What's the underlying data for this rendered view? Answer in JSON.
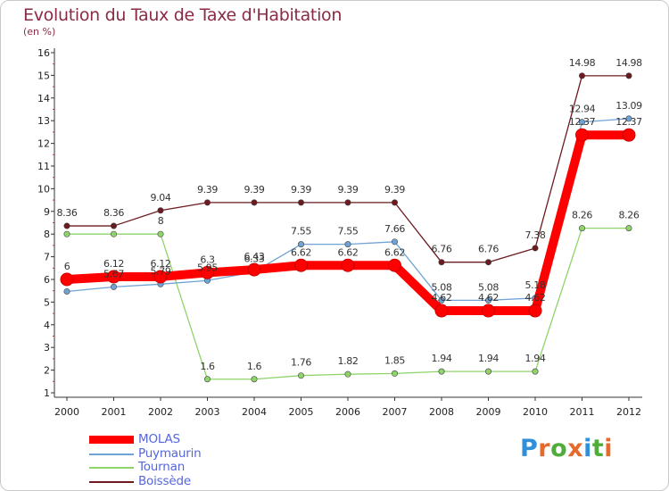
{
  "title": "Evolution du Taux de Taxe d'Habitation",
  "unit": "(en %)",
  "brand": "Proxiti",
  "chart_data": {
    "type": "line",
    "x": [
      "2000",
      "2001",
      "2002",
      "2003",
      "2004",
      "2005",
      "2006",
      "2007",
      "2008",
      "2009",
      "2010",
      "2011",
      "2012"
    ],
    "ylim": [
      1,
      16
    ],
    "yticks": [
      1,
      2,
      3,
      4,
      5,
      6,
      7,
      8,
      9,
      10,
      11,
      12,
      13,
      14,
      15,
      16
    ],
    "grid": false,
    "legend": "bottom-left",
    "series": [
      {
        "name": "Boissède",
        "color": "#6b1a1f",
        "values": [
          8.36,
          8.36,
          9.04,
          9.39,
          9.39,
          9.39,
          9.39,
          9.39,
          6.76,
          6.76,
          7.38,
          14.98,
          14.98
        ],
        "labels": [
          "8.36",
          "8.36",
          "9.04",
          "9.39",
          "9.39",
          "9.39",
          "9.39",
          "9.39",
          "6.76",
          "6.76",
          "7.38",
          "14.98",
          "14.98"
        ]
      },
      {
        "name": "Tournan",
        "color": "#8fd46a",
        "values": [
          8,
          8,
          8,
          1.6,
          1.6,
          1.76,
          1.82,
          1.85,
          1.94,
          1.94,
          1.94,
          8.26,
          8.26
        ],
        "labels": [
          "",
          "",
          "8",
          "1.6",
          "1.6",
          "1.76",
          "1.82",
          "1.85",
          "1.94",
          "1.94",
          "1.94",
          "8.26",
          "8.26"
        ]
      },
      {
        "name": "Puymaurin",
        "color": "#6fa3d6",
        "values": [
          5.47,
          5.67,
          5.79,
          5.95,
          6.33,
          7.55,
          7.55,
          7.66,
          5.08,
          5.08,
          5.18,
          12.94,
          13.09
        ],
        "labels": [
          "",
          "5.67",
          "5.79",
          "5.95",
          "6.33",
          "7.55",
          "7.55",
          "7.66",
          "5.08",
          "5.08",
          "5.18",
          "12.94",
          "13.09"
        ]
      },
      {
        "name": "MOLAS",
        "color": "#ff0000",
        "values": [
          6,
          6.12,
          6.12,
          6.3,
          6.43,
          6.62,
          6.62,
          6.62,
          4.62,
          4.62,
          4.62,
          12.37,
          12.37
        ],
        "labels": [
          "6",
          "6.12",
          "6.12",
          "6.3",
          "6.43",
          "6.62",
          "6.62",
          "6.62",
          "4.62",
          "4.62",
          "4.62",
          "12.37",
          "12.37"
        ]
      }
    ]
  },
  "legend": [
    {
      "name": "MOLAS",
      "color": "#ff0000",
      "text_color": "#5566dd"
    },
    {
      "name": "Puymaurin",
      "color": "#6fa3d6",
      "text_color": "#5566dd"
    },
    {
      "name": "Tournan",
      "color": "#8fd46a",
      "text_color": "#5566dd"
    },
    {
      "name": "Boissède",
      "color": "#6b1a1f",
      "text_color": "#5566dd"
    }
  ]
}
